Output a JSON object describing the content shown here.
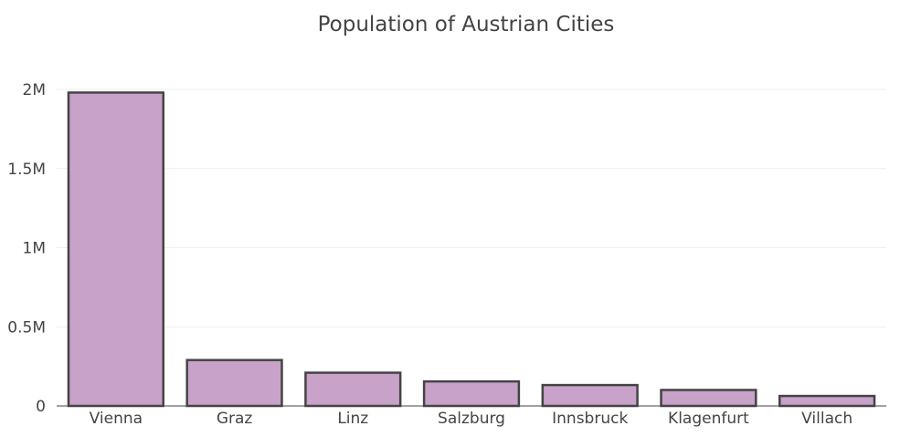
{
  "chart_data": {
    "type": "bar",
    "title": "Population of Austrian Cities",
    "xlabel": "",
    "ylabel": "",
    "categories": [
      "Vienna",
      "Graz",
      "Linz",
      "Salzburg",
      "Innsbruck",
      "Klagenfurt",
      "Villach"
    ],
    "values": [
      1980000,
      290000,
      210000,
      155000,
      132000,
      101000,
      63000
    ],
    "ylim": [
      0,
      2000000
    ],
    "yticks": [
      0,
      500000,
      1000000,
      1500000,
      2000000
    ],
    "ytick_labels": [
      "0",
      "0.5M",
      "1M",
      "1.5M",
      "2M"
    ],
    "grid": true,
    "legend": "none",
    "colors": {
      "bar_fill": "#c8a2c8",
      "bar_stroke": "#444444",
      "grid": "#eeeeee",
      "text": "#444444"
    }
  }
}
